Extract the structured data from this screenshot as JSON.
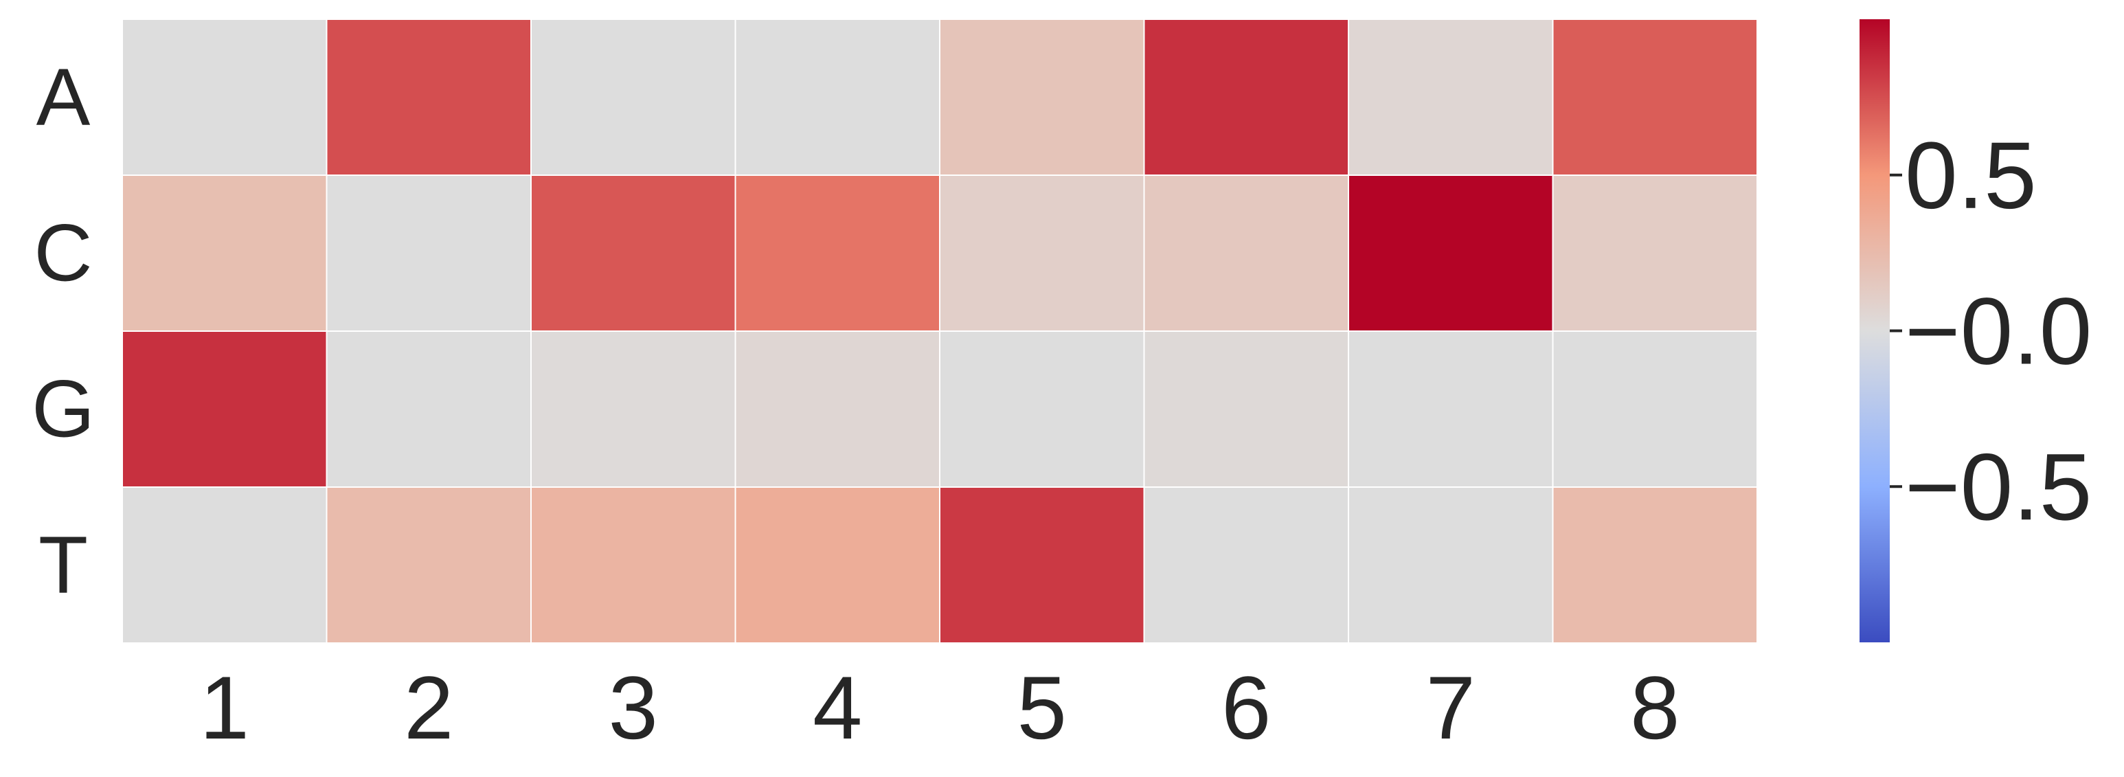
{
  "chart_data": {
    "type": "heatmap",
    "title": "",
    "xlabel": "",
    "ylabel": "",
    "x_categories": [
      "1",
      "2",
      "3",
      "4",
      "5",
      "6",
      "7",
      "8"
    ],
    "y_categories": [
      "A",
      "C",
      "G",
      "T"
    ],
    "values": [
      [
        0.0,
        0.75,
        0.0,
        0.0,
        0.18,
        0.85,
        0.05,
        0.7
      ],
      [
        0.22,
        0.0,
        0.72,
        0.62,
        0.1,
        0.15,
        1.0,
        0.12
      ],
      [
        0.85,
        0.0,
        0.02,
        0.05,
        0.0,
        0.03,
        0.0,
        0.0
      ],
      [
        0.0,
        0.25,
        0.3,
        0.35,
        0.82,
        0.0,
        0.0,
        0.25
      ]
    ],
    "colormap": "coolwarm",
    "vmin": -1.0,
    "vmax": 1.0,
    "colorbar": {
      "ticks": [
        0.5,
        0.0,
        -0.5
      ],
      "tick_labels": [
        "0.5",
        "−0.0",
        "−0.5"
      ]
    },
    "grid_lines": true,
    "grid_color": "#ffffff"
  }
}
